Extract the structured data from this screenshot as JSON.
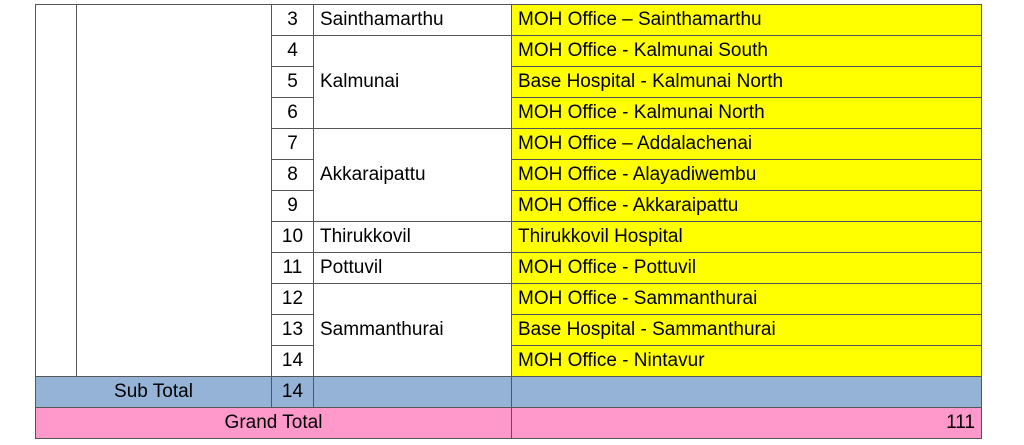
{
  "rows": [
    {
      "no": "3",
      "location": "Sainthamarthu",
      "institution": "MOH Office – Sainthamarthu"
    },
    {
      "no": "4",
      "location": "Kalmunai",
      "institution": "MOH Office - Kalmunai South"
    },
    {
      "no": "5",
      "location": "",
      "institution": "Base Hospital - Kalmunai North"
    },
    {
      "no": "6",
      "location": "",
      "institution": "MOH Office - Kalmunai North"
    },
    {
      "no": "7",
      "location": "Akkaraipattu",
      "institution": "MOH Office – Addalachenai"
    },
    {
      "no": "8",
      "location": "",
      "institution": "MOH Office - Alayadiwembu"
    },
    {
      "no": "9",
      "location": "",
      "institution": "MOH Office - Akkaraipattu"
    },
    {
      "no": "10",
      "location": "Thirukkovil",
      "institution": "Thirukkovil Hospital"
    },
    {
      "no": "11",
      "location": "Pottuvil",
      "institution": "MOH Office - Pottuvil"
    },
    {
      "no": "12",
      "location": "Sammanthurai",
      "institution": "MOH Office - Sammanthurai"
    },
    {
      "no": "13",
      "location": "",
      "institution": "Base Hospital - Sammanthurai"
    },
    {
      "no": "14",
      "location": "",
      "institution": "MOH Office - Nintavur"
    }
  ],
  "subtotal": {
    "label": "Sub Total",
    "count": "14"
  },
  "grand_total": {
    "label": "Grand Total",
    "value": "111"
  },
  "colors": {
    "institution_bg": "#ffff00",
    "subtotal_bg": "#95b3d7",
    "grand_total_bg": "#ff99cc"
  }
}
